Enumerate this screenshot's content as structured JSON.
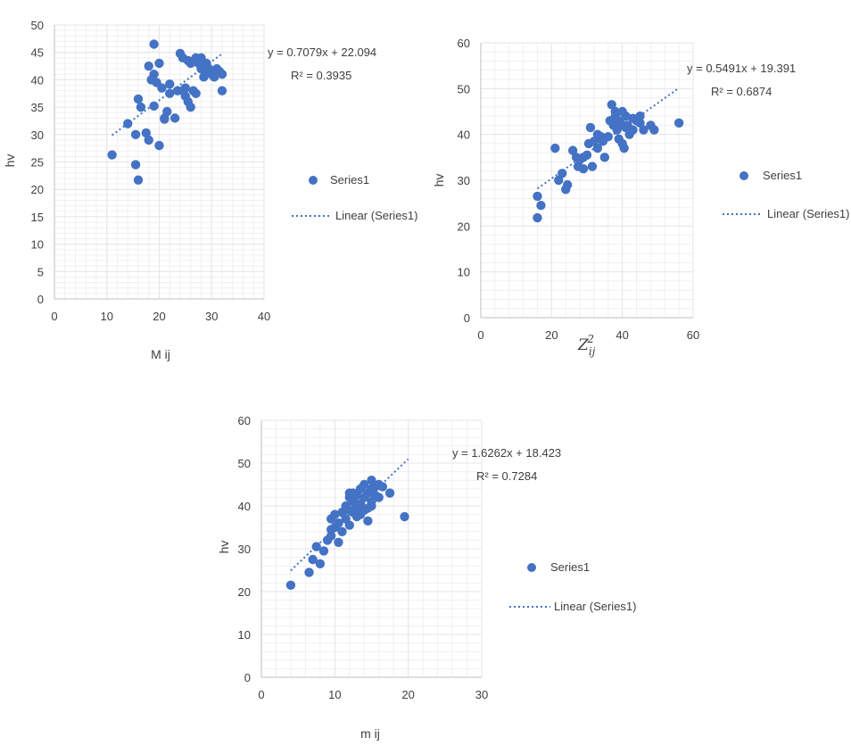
{
  "chart_data": [
    {
      "type": "scatter",
      "xlabel": "M ij",
      "ylabel": "hv",
      "xlim": [
        0,
        40
      ],
      "ylim": [
        0,
        50
      ],
      "xticks": [
        "0",
        "10",
        "20",
        "30",
        "40"
      ],
      "yticks": [
        "0",
        "5",
        "10",
        "15",
        "20",
        "25",
        "30",
        "35",
        "40",
        "45",
        "50"
      ],
      "equation": "y = 0.7079x + 22.094",
      "r_squared": "R² = 0.3935",
      "legend": {
        "series": "Series1",
        "trend": "Linear (Series1)",
        "placement": "right"
      },
      "trendline": {
        "slope": 0.7079,
        "intercept": 22.094,
        "x_range": [
          11,
          32
        ]
      },
      "series": [
        {
          "name": "Series1",
          "x": [
            11,
            14,
            15.5,
            15.5,
            16,
            16,
            16.5,
            17.5,
            18,
            18,
            18.5,
            19,
            19,
            19,
            19.5,
            20,
            20,
            20.5,
            21,
            21,
            21.5,
            22,
            22,
            23,
            23.5,
            24,
            24.5,
            24.5,
            25,
            25,
            25.5,
            25.5,
            26,
            26,
            26.5,
            27,
            27,
            27.5,
            28,
            28,
            28.5,
            29,
            29,
            29.5,
            30,
            30.5,
            31,
            31.5,
            32,
            32
          ],
          "y": [
            26.3,
            32,
            24.5,
            30,
            21.7,
            36.5,
            35,
            30.3,
            29,
            42.5,
            40,
            46.5,
            41,
            35.2,
            39.5,
            43,
            28,
            38.5,
            33,
            32.8,
            34.2,
            39.2,
            37.5,
            33,
            38,
            44.8,
            44,
            38,
            38.5,
            37,
            43.5,
            36,
            43,
            35,
            38,
            44,
            37.5,
            43,
            42,
            44,
            40.5,
            43,
            41.5,
            42,
            41,
            40.5,
            42,
            41.5,
            41,
            38
          ]
        }
      ]
    },
    {
      "type": "scatter",
      "xlabel": "Z²ij",
      "ylabel": "hv",
      "xlim": [
        0,
        60
      ],
      "ylim": [
        0,
        60
      ],
      "xticks": [
        "0",
        "20",
        "40",
        "60"
      ],
      "yticks": [
        "0",
        "10",
        "20",
        "30",
        "40",
        "50",
        "60"
      ],
      "equation": "y = 0.5491x + 19.391",
      "r_squared": "R² = 0.6874",
      "legend": {
        "series": "Series1",
        "trend": "Linear (Series1)",
        "placement": "right"
      },
      "trendline": {
        "slope": 0.5491,
        "intercept": 19.391,
        "x_range": [
          16,
          56
        ]
      },
      "series": [
        {
          "name": "Series1",
          "x": [
            16,
            16,
            17,
            21,
            22,
            23,
            24,
            24.5,
            26,
            27,
            27.5,
            28,
            29,
            29,
            30,
            30.5,
            31,
            31.5,
            32,
            33,
            33,
            34,
            34.5,
            35,
            36,
            36.5,
            37,
            37.5,
            38,
            38,
            38.5,
            39,
            39,
            39.5,
            40,
            40,
            40.5,
            41,
            41,
            41.5,
            42,
            43,
            43,
            44,
            45,
            45,
            46,
            48,
            49,
            56
          ],
          "y": [
            21.8,
            26.5,
            24.5,
            37,
            30,
            31.5,
            28,
            29,
            36.5,
            35,
            33,
            34.5,
            35,
            32.5,
            35.5,
            38,
            41.5,
            33,
            38.5,
            40,
            37,
            39.5,
            38.5,
            35,
            39.5,
            43,
            46.5,
            42,
            45,
            44,
            41,
            43,
            39,
            42.5,
            45,
            38,
            37,
            44,
            41.5,
            42,
            40,
            43.5,
            41,
            43,
            44,
            42.5,
            41,
            42,
            41,
            42.5
          ]
        }
      ]
    },
    {
      "type": "scatter",
      "xlabel": "m ij",
      "ylabel": "hv",
      "xlim": [
        0,
        30
      ],
      "ylim": [
        0,
        60
      ],
      "xticks": [
        "0",
        "10",
        "20",
        "30"
      ],
      "yticks": [
        "0",
        "10",
        "20",
        "30",
        "40",
        "50",
        "60"
      ],
      "equation": "y = 1.6262x + 18.423",
      "r_squared": "R² = 0.7284",
      "legend": {
        "series": "Series1",
        "trend": "Linear (Series1)",
        "placement": "right"
      },
      "trendline": {
        "slope": 1.6262,
        "intercept": 18.423,
        "x_range": [
          4,
          20
        ]
      },
      "series": [
        {
          "name": "Series1",
          "x": [
            4,
            6.5,
            7,
            7.5,
            8,
            8.5,
            9,
            9.5,
            9.5,
            10,
            10,
            10.5,
            10.5,
            11,
            11,
            11.5,
            11.5,
            12,
            12,
            12,
            12.5,
            12.5,
            13,
            13,
            13,
            13.5,
            13.5,
            14,
            14,
            14,
            14.5,
            14.5,
            15,
            15,
            15,
            15.5,
            15.5,
            16,
            16,
            16.5,
            17.5,
            19.5,
            14.5,
            11,
            9.5,
            12.5,
            13.5,
            15,
            13,
            12
          ],
          "y": [
            21.5,
            24.5,
            27.5,
            30.5,
            26.5,
            29.5,
            32,
            37,
            33,
            35,
            38,
            31.5,
            36,
            34,
            38.5,
            40,
            37,
            42,
            39,
            35.5,
            43,
            38.5,
            40,
            42.5,
            37.5,
            44,
            40.5,
            42,
            39,
            45,
            43,
            36.5,
            44,
            41,
            46,
            42.5,
            44.5,
            45,
            42,
            44.5,
            43,
            37.5,
            39.5,
            38.5,
            34.5,
            41,
            38,
            40,
            38.5,
            43
          ]
        }
      ]
    }
  ]
}
